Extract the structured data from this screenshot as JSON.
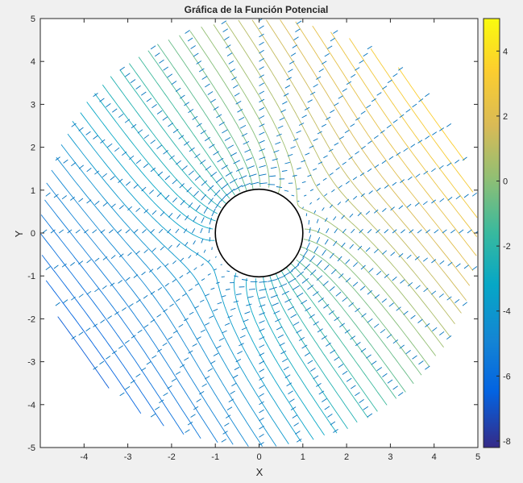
{
  "chart_data": {
    "type": "contour",
    "title": "Gráfica de la Función Potencial",
    "xlabel": "X",
    "ylabel": "Y",
    "xlim": [
      -5,
      5
    ],
    "ylim": [
      -5,
      5
    ],
    "xticks": [
      -4,
      -3,
      -2,
      -1,
      0,
      1,
      2,
      3,
      4,
      5
    ],
    "yticks": [
      5,
      4,
      3,
      2,
      1,
      0,
      -1,
      -2,
      -3,
      -4,
      -5
    ],
    "xtick_labels": [
      "-4",
      "-3",
      "-2",
      "-1",
      "0",
      "1",
      "2",
      "3",
      "4",
      "5"
    ],
    "ytick_labels": [
      "5",
      "4",
      "3",
      "2",
      "1",
      "0",
      "-1",
      "-2",
      "-3",
      "-4",
      "-5"
    ],
    "cylinder_radius": 1,
    "domain_radius": 5,
    "overlay": "quiver (velocity vectors along radial rays)",
    "colormap": "parula",
    "colorbar": {
      "limits": [
        -8.2,
        5
      ],
      "ticks": [
        4,
        2,
        0,
        -2,
        -4,
        -6,
        -8
      ],
      "tick_labels": [
        "4",
        "2",
        "0",
        "-2",
        "-4",
        "-6",
        "-8"
      ]
    },
    "grid": false
  },
  "colors": {
    "figure_bg": "#f0f0f0",
    "axes_bg": "#ffffff",
    "quiver": "#0072bd",
    "axis_color": "#262626"
  }
}
